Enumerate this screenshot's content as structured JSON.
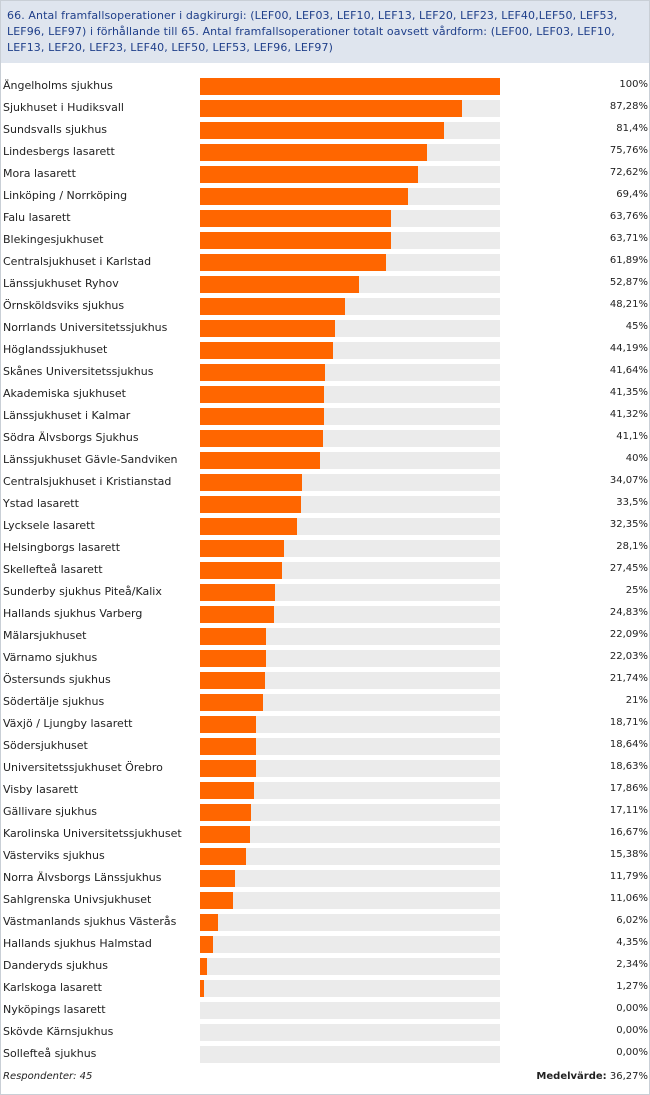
{
  "chart_data": {
    "type": "bar",
    "title": "66. Antal framfallsoperationer i dagkirurgi: (LEF00, LEF03, LEF10, LEF13, LEF20, LEF23, LEF40,LEF50, LEF53, LEF96, LEF97)  i förhållande till 65. Antal framfallsoperationer totalt oavsett vårdform: (LEF00, LEF03, LEF10, LEF13, LEF20, LEF23, LEF40, LEF50, LEF53, LEF96, LEF97)",
    "xlim": [
      0,
      100
    ],
    "colors": {
      "bar": "#ff6600",
      "track": "#ebebeb",
      "header_bg": "#dfe5ee",
      "title": "#1f3f8a"
    },
    "categories": [
      "Ängelholms sjukhus",
      "Sjukhuset i Hudiksvall",
      "Sundsvalls sjukhus",
      "Lindesbergs lasarett",
      "Mora lasarett",
      "Linköping / Norrköping",
      "Falu lasarett",
      "Blekingesjukhuset",
      "Centralsjukhuset i Karlstad",
      "Länssjukhuset Ryhov",
      "Örnsköldsviks sjukhus",
      "Norrlands Universitetssjukhus",
      "Höglandssjukhuset",
      "Skånes Universitetssjukhus",
      "Akademiska sjukhuset",
      "Länssjukhuset i Kalmar",
      "Södra Älvsborgs Sjukhus",
      "Länssjukhuset Gävle-Sandviken",
      "Centralsjukhuset i Kristianstad",
      "Ystad lasarett",
      "Lycksele lasarett",
      "Helsingborgs lasarett",
      "Skellefteå lasarett",
      "Sunderby sjukhus Piteå/Kalix",
      "Hallands sjukhus Varberg",
      "Mälarsjukhuset",
      "Värnamo sjukhus",
      "Östersunds sjukhus",
      "Södertälje sjukhus",
      "Växjö / Ljungby lasarett",
      "Södersjukhuset",
      "Universitetssjukhuset Örebro",
      "Visby lasarett",
      "Gällivare sjukhus",
      "Karolinska Universitetssjukhuset",
      "Västerviks sjukhus",
      "Norra Älvsborgs Länssjukhus",
      "Sahlgrenska Univsjukhuset",
      "Västmanlands sjukhus Västerås",
      "Hallands sjukhus Halmstad",
      "Danderyds sjukhus",
      "Karlskoga lasarett",
      "Nyköpings lasarett",
      "Skövde Kärnsjukhus",
      "Sollefteå sjukhus"
    ],
    "values": [
      100,
      87.28,
      81.4,
      75.76,
      72.62,
      69.4,
      63.76,
      63.71,
      61.89,
      52.87,
      48.21,
      45,
      44.19,
      41.64,
      41.35,
      41.32,
      41.1,
      40,
      34.07,
      33.5,
      32.35,
      28.1,
      27.45,
      25,
      24.83,
      22.09,
      22.03,
      21.74,
      21,
      18.71,
      18.64,
      18.63,
      17.86,
      17.11,
      16.67,
      15.38,
      11.79,
      11.06,
      6.02,
      4.35,
      2.34,
      1.27,
      0,
      0,
      0
    ],
    "value_labels": [
      "100%",
      "87,28%",
      "81,4%",
      "75,76%",
      "72,62%",
      "69,4%",
      "63,76%",
      "63,71%",
      "61,89%",
      "52,87%",
      "48,21%",
      "45%",
      "44,19%",
      "41,64%",
      "41,35%",
      "41,32%",
      "41,1%",
      "40%",
      "34,07%",
      "33,5%",
      "32,35%",
      "28,1%",
      "27,45%",
      "25%",
      "24,83%",
      "22,09%",
      "22,03%",
      "21,74%",
      "21%",
      "18,71%",
      "18,64%",
      "18,63%",
      "17,86%",
      "17,11%",
      "16,67%",
      "15,38%",
      "11,79%",
      "11,06%",
      "6,02%",
      "4,35%",
      "2,34%",
      "1,27%",
      "0,00%",
      "0,00%",
      "0,00%"
    ]
  },
  "footer": {
    "respondents": "Respondenter: 45",
    "mean_label": "Medelvärde:",
    "mean_value": "36,27%"
  }
}
